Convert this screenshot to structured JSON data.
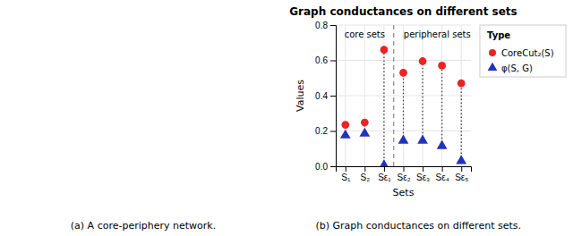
{
  "chart_data": {
    "type": "scatter",
    "title": "Graph conductances on different sets",
    "xlabel": "Sets",
    "ylabel": "Values",
    "categories": [
      "S₁",
      "S₂",
      "Sε₁",
      "Sε₂",
      "Sε₃",
      "Sε₄",
      "Sε₅"
    ],
    "series": [
      {
        "name": "CoreCut₂(S)",
        "color": "#EE2222",
        "marker": "circle",
        "values": [
          0.235,
          0.248,
          0.66,
          0.53,
          0.595,
          0.57,
          0.47
        ]
      },
      {
        "name": "φ(S, G)",
        "color": "#2233BB",
        "marker": "triangle",
        "values": [
          0.175,
          0.185,
          0.005,
          0.145,
          0.145,
          0.115,
          0.03
        ]
      }
    ],
    "ylim": [
      0.0,
      0.8
    ],
    "yticks": [
      {
        "value": 0.0,
        "label": "0.0"
      },
      0.2,
      0.4,
      0.6,
      0.8
    ],
    "grid": true,
    "legend": "right",
    "legend_title": "Type",
    "divider_x": 2.5,
    "annotations": [
      {
        "text": "core sets",
        "x": 1.0
      },
      {
        "text": "peripheral sets",
        "x": 4.75
      }
    ],
    "caption_left": "(a) A core-periphery network.",
    "caption_right": "(b) Graph conductances on different sets."
  }
}
